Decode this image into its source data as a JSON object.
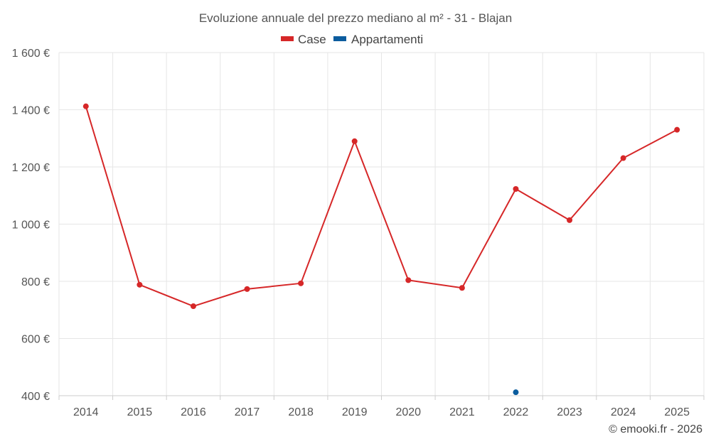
{
  "chart_data": {
    "type": "line",
    "title": "Evoluzione annuale del prezzo mediano al m² - 31 - Blajan",
    "categories": [
      "2014",
      "2015",
      "2016",
      "2017",
      "2018",
      "2019",
      "2020",
      "2021",
      "2022",
      "2023",
      "2024",
      "2025"
    ],
    "series": [
      {
        "name": "Case",
        "color": "#d62728",
        "values": [
          1412,
          788,
          713,
          773,
          793,
          1290,
          804,
          777,
          1123,
          1014,
          1231,
          1330
        ]
      },
      {
        "name": "Appartamenti",
        "color": "#0b5c9e",
        "values": [
          null,
          null,
          null,
          null,
          null,
          null,
          null,
          null,
          412,
          null,
          null,
          null
        ]
      }
    ],
    "ylim": [
      400,
      1600
    ],
    "yticks": [
      400,
      600,
      800,
      1000,
      1200,
      1400,
      1600
    ],
    "ytick_labels": [
      "400 €",
      "600 €",
      "800 €",
      "1 000 €",
      "1 200 €",
      "1 400 €",
      "1 600 €"
    ],
    "grid": true,
    "legend_position": "top-center"
  },
  "credit": "© emooki.fr - 2026"
}
